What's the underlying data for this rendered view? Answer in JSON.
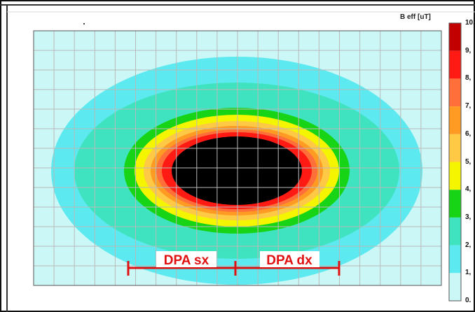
{
  "chart_data": {
    "type": "heatmap",
    "unit_label": "B eff [uT]",
    "colorbar": {
      "ticks": [
        "10,",
        "9,",
        "8,",
        "7,",
        "6,",
        "5,",
        "4,",
        "3,",
        "2,",
        "1,",
        "0."
      ],
      "bands": [
        {
          "from": 0,
          "to": 1,
          "color": "#ccf7f7"
        },
        {
          "from": 1,
          "to": 2,
          "color": "#5ceaf0"
        },
        {
          "from": 2,
          "to": 3,
          "color": "#40e3c0"
        },
        {
          "from": 3,
          "to": 4,
          "color": "#17d417"
        },
        {
          "from": 4,
          "to": 5,
          "color": "#f5f500"
        },
        {
          "from": 5,
          "to": 6,
          "color": "#ffc845"
        },
        {
          "from": 6,
          "to": 7,
          "color": "#ff9a22"
        },
        {
          "from": 7,
          "to": 8,
          "color": "#ff6f3a"
        },
        {
          "from": 8,
          "to": 9,
          "color": "#ff1a14"
        },
        {
          "from": 9,
          "to": 10,
          "color": "#c20000"
        }
      ]
    },
    "contours": [
      {
        "level": 1,
        "color": "#5ceaf0"
      },
      {
        "level": 2,
        "color": "#40e3c0"
      },
      {
        "level": 3,
        "color": "#17d417"
      },
      {
        "level": 4,
        "color": "#f5f500"
      },
      {
        "level": 5,
        "color": "#ffc845"
      },
      {
        "level": 6,
        "color": "#ff9a22"
      },
      {
        "level": 7,
        "color": "#ff6f3a"
      },
      {
        "level": 8,
        "color": "#ff1a14"
      },
      {
        "level": 10,
        "color": "#000000"
      }
    ],
    "grid": true,
    "grid_cols": 20,
    "grid_rows": 13,
    "background_color": "#ccf7f7",
    "annotations": [
      {
        "label": "DPA sx"
      },
      {
        "label": "DPA dx"
      }
    ],
    "annotation_color": "#e01010"
  }
}
